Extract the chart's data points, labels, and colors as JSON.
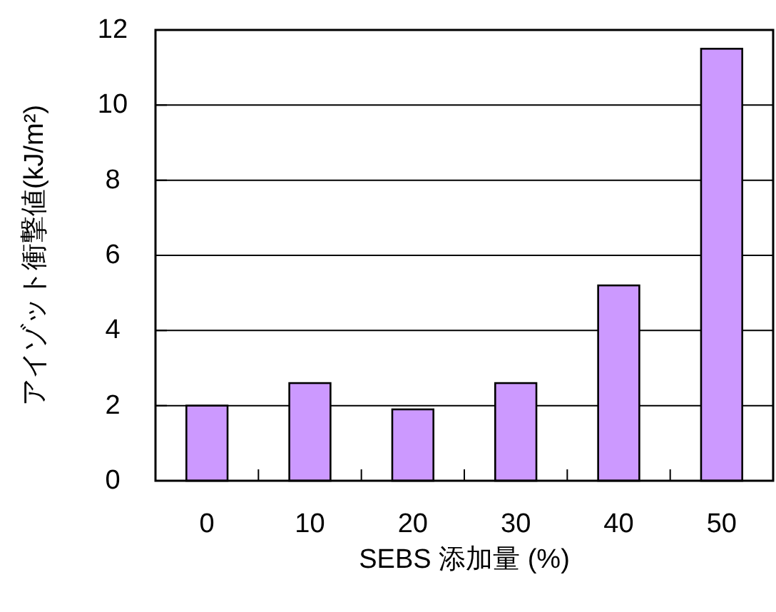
{
  "chart_data": {
    "type": "bar",
    "xlabel": "SEBS 添加量 (%)",
    "ylabel": "アイゾット衝撃値(kJ/m²)",
    "categories": [
      "0",
      "10",
      "20",
      "30",
      "40",
      "50"
    ],
    "series": [
      {
        "color": "#cc99ff",
        "values": [
          2.0,
          2.6,
          1.9,
          2.6,
          5.2,
          11.5
        ]
      }
    ],
    "ylim": [
      0,
      12
    ],
    "yticks": [
      0,
      2,
      4,
      6,
      8,
      10,
      12
    ],
    "grid": "y"
  }
}
